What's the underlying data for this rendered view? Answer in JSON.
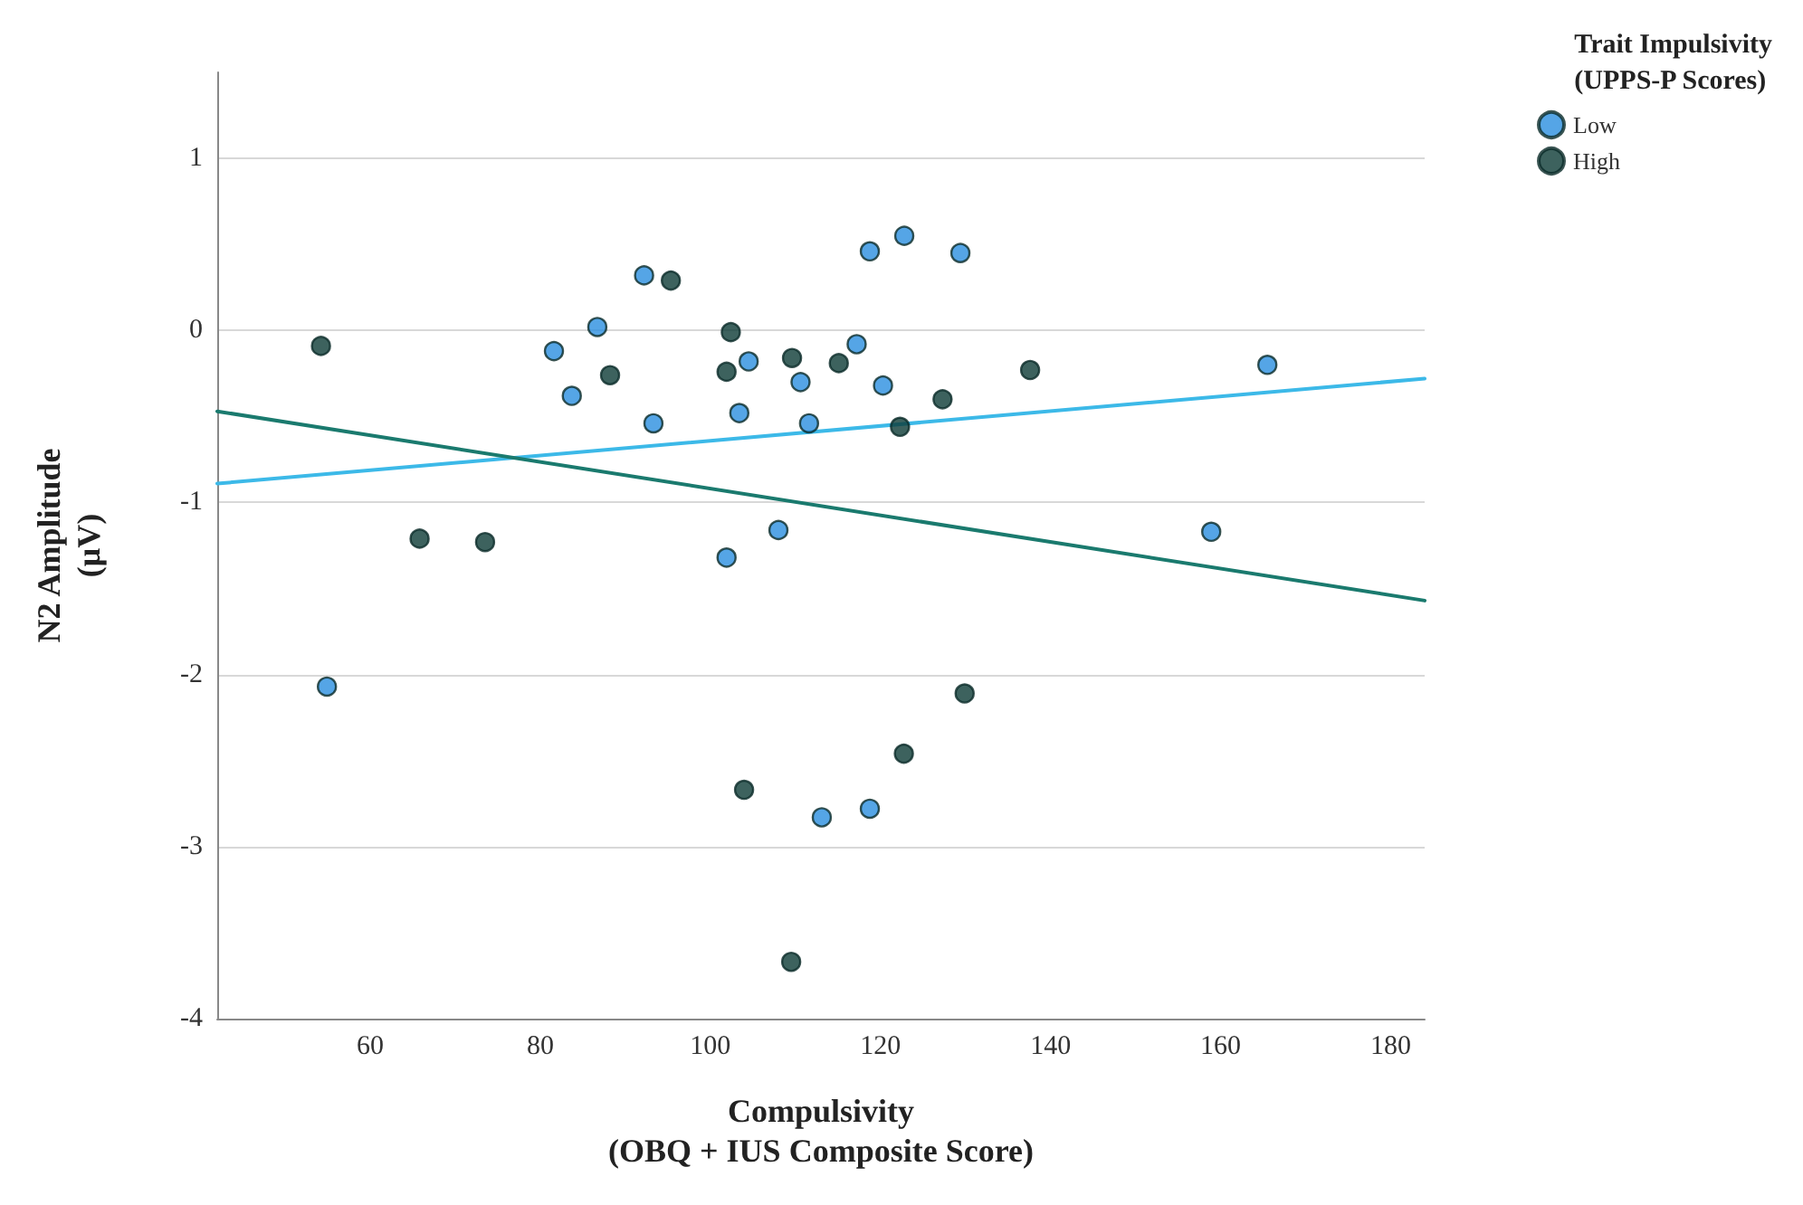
{
  "chart_data": {
    "type": "scatter",
    "xlabel": "Compulsivity\n(OBQ + IUS Composite Score)",
    "ylabel": "N2 Amplitude\n(μV)",
    "legend_title": "Trait Impulsivity\n(UPPS-P Scores)",
    "xlim": [
      42,
      184
    ],
    "xticks": [
      60,
      80,
      100,
      120,
      140,
      160,
      180
    ],
    "ylim": [
      -4,
      1.5
    ],
    "yticks": [
      -4,
      -3,
      -2,
      -1,
      0,
      1
    ],
    "grid": "y",
    "legend": "top right",
    "marker": "circle",
    "series": [
      {
        "name": "Low",
        "color": "#2a8fe0",
        "x": [
          54.9,
          81.6,
          83.7,
          86.7,
          92.2,
          93.3,
          101.9,
          103.4,
          104.5,
          108,
          110.6,
          111.6,
          113.1,
          117.2,
          118.75,
          118.75,
          120.3,
          122.8,
          129.4,
          158.9,
          165.5
        ],
        "values": [
          -2.07,
          -0.12,
          -0.38,
          0.02,
          0.32,
          -0.54,
          -1.32,
          -0.48,
          -0.18,
          -1.16,
          -0.3,
          -0.54,
          -2.83,
          -0.08,
          0.46,
          -2.78,
          -0.32,
          0.55,
          0.45,
          -1.17,
          -0.2
        ]
      },
      {
        "name": "High",
        "color": "#0d3b36",
        "x": [
          54.2,
          65.8,
          73.5,
          88.2,
          95.35,
          101.9,
          102.4,
          103.96,
          109.5,
          109.6,
          115.1,
          122.3,
          122.75,
          127.3,
          129.9,
          137.6
        ],
        "values": [
          -0.09,
          -1.21,
          -1.23,
          -0.26,
          0.29,
          -0.24,
          -0.01,
          -2.67,
          -3.67,
          -0.16,
          -0.19,
          -0.56,
          -2.46,
          -0.4,
          -2.11,
          -0.23
        ]
      },
      {
        "type": "line",
        "color": "#3cb9e8",
        "line_style": "solid",
        "marker": "none",
        "x": [
          42,
          184
        ],
        "values": [
          -0.89,
          -0.28
        ]
      },
      {
        "type": "line",
        "color": "#1a7a6e",
        "line_style": "solid",
        "marker": "none",
        "x": [
          42,
          184
        ],
        "values": [
          -0.47,
          -1.57
        ]
      }
    ]
  }
}
